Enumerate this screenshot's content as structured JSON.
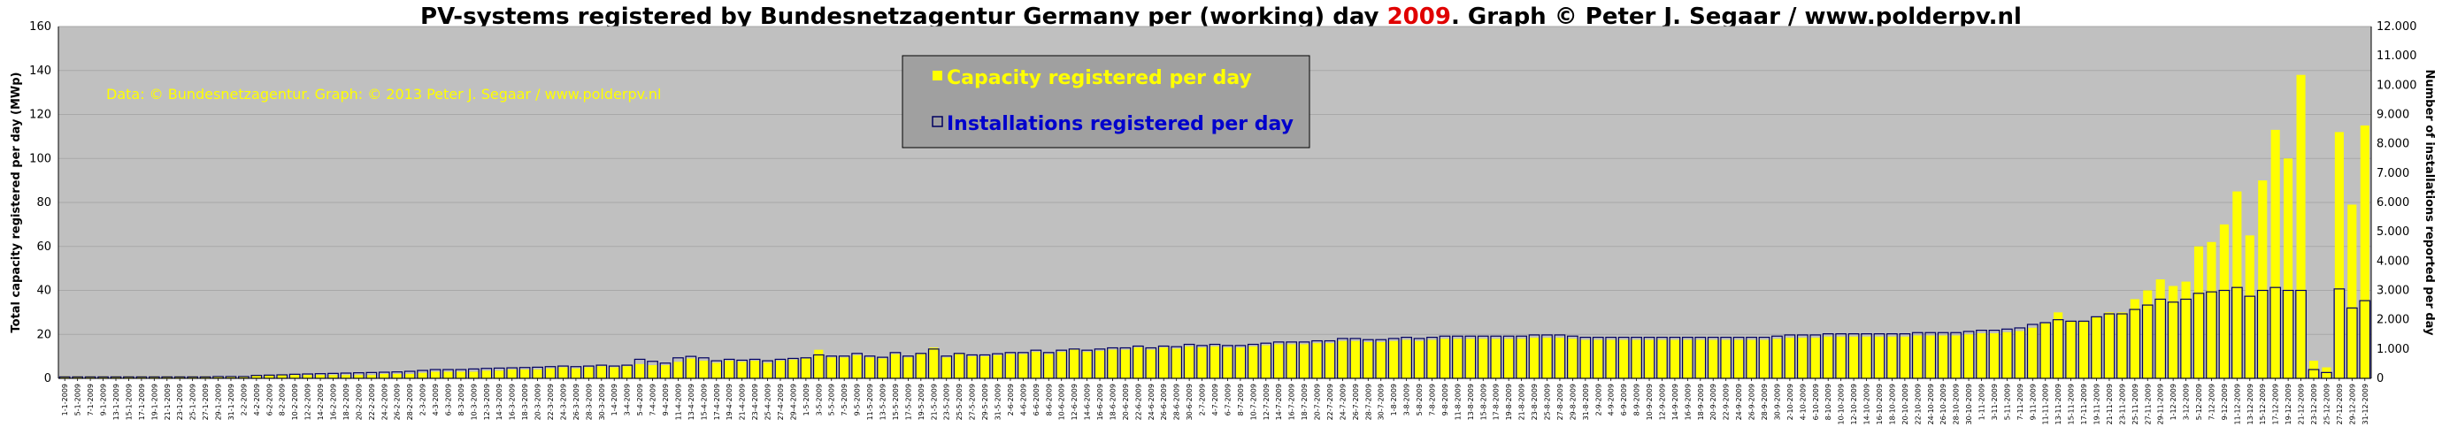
{
  "header": {
    "title_prefix": "PV-systems registered by Bundesnetzagentur Germany per (working) day ",
    "title_year": "2009",
    "title_suffix": ". Graph © Peter J. Segaar / www.polderpv.nl"
  },
  "credit": "Data: © Bundesnetzagentur. Graph: © 2013 Peter J. Segaar / www.polderpv.nl",
  "colors": {
    "plot_bg": "#c0c0c0",
    "capacity": "#ffff00",
    "installations_stroke": "#000060",
    "legend_bg": "#a0a0a0"
  },
  "chart_data": {
    "type": "bar",
    "ylabel": "Total capacity registered per day (MWp)",
    "y2label": "Number of installations reported per day",
    "ylim": [
      0,
      160
    ],
    "y2lim": [
      0,
      12000
    ],
    "yticks": [
      0,
      20,
      40,
      60,
      80,
      100,
      120,
      140,
      160
    ],
    "y2ticks": [
      "0",
      "1.000",
      "2.000",
      "3.000",
      "4.000",
      "5.000",
      "6.000",
      "7.000",
      "8.000",
      "9.000",
      "10.000",
      "11.000",
      "12.000"
    ],
    "legend": {
      "placement": "top-center",
      "entries": [
        "Capacity registered per day",
        "Installations registered per day"
      ]
    },
    "grid": true,
    "categories": [
      "1-1-2009",
      "5-1-2009",
      "7-1-2009",
      "9-1-2009",
      "13-1-2009",
      "15-1-2009",
      "17-1-2009",
      "19-1-2009",
      "21-1-2009",
      "23-1-2009",
      "25-1-2009",
      "27-1-2009",
      "29-1-2009",
      "31-1-2009",
      "2-2-2009",
      "4-2-2009",
      "6-2-2009",
      "8-2-2009",
      "10-2-2009",
      "12-2-2009",
      "14-2-2009",
      "16-2-2009",
      "18-2-2009",
      "20-2-2009",
      "22-2-2009",
      "24-2-2009",
      "26-2-2009",
      "28-2-2009",
      "2-3-2009",
      "4-3-2009",
      "6-3-2009",
      "8-3-2009",
      "10-3-2009",
      "12-3-2009",
      "14-3-2009",
      "16-3-2009",
      "18-3-2009",
      "20-3-2009",
      "22-3-2009",
      "24-3-2009",
      "26-3-2009",
      "28-3-2009",
      "30-3-2009",
      "1-4-2009",
      "3-4-2009",
      "5-4-2009",
      "7-4-2009",
      "9-4-2009",
      "11-4-2009",
      "13-4-2009",
      "15-4-2009",
      "17-4-2009",
      "19-4-2009",
      "21-4-2009",
      "23-4-2009",
      "25-4-2009",
      "27-4-2009",
      "29-4-2009",
      "1-5-2009",
      "3-5-2009",
      "5-5-2009",
      "7-5-2009",
      "9-5-2009",
      "11-5-2009",
      "13-5-2009",
      "15-5-2009",
      "17-5-2009",
      "19-5-2009",
      "21-5-2009",
      "23-5-2009",
      "25-5-2009",
      "27-5-2009",
      "29-5-2009",
      "31-5-2009",
      "2-6-2009",
      "4-6-2009",
      "6-6-2009",
      "8-6-2009",
      "10-6-2009",
      "12-6-2009",
      "14-6-2009",
      "16-6-2009",
      "18-6-2009",
      "20-6-2009",
      "22-6-2009",
      "24-6-2009",
      "26-6-2009",
      "28-6-2009",
      "30-6-2009",
      "2-7-2009",
      "4-7-2009",
      "6-7-2009",
      "8-7-2009",
      "10-7-2009",
      "12-7-2009",
      "14-7-2009",
      "16-7-2009",
      "18-7-2009",
      "20-7-2009",
      "22-7-2009",
      "24-7-2009",
      "26-7-2009",
      "28-7-2009",
      "30-7-2009",
      "1-8-2009",
      "3-8-2009",
      "5-8-2009",
      "7-8-2009",
      "9-8-2009",
      "11-8-2009",
      "13-8-2009",
      "15-8-2009",
      "17-8-2009",
      "19-8-2009",
      "21-8-2009",
      "23-8-2009",
      "25-8-2009",
      "27-8-2009",
      "29-8-2009",
      "31-8-2009",
      "2-9-2009",
      "4-9-2009",
      "6-9-2009",
      "8-9-2009",
      "10-9-2009",
      "12-9-2009",
      "14-9-2009",
      "16-9-2009",
      "18-9-2009",
      "20-9-2009",
      "22-9-2009",
      "24-9-2009",
      "26-9-2009",
      "28-9-2009",
      "30-9-2009",
      "2-10-2009",
      "4-10-2009",
      "6-10-2009",
      "8-10-2009",
      "10-10-2009",
      "12-10-2009",
      "14-10-2009",
      "16-10-2009",
      "18-10-2009",
      "20-10-2009",
      "22-10-2009",
      "24-10-2009",
      "26-10-2009",
      "28-10-2009",
      "30-10-2009",
      "1-11-2009",
      "3-11-2009",
      "5-11-2009",
      "7-11-2009",
      "9-11-2009",
      "11-11-2009",
      "13-11-2009",
      "15-11-2009",
      "17-11-2009",
      "19-11-2009",
      "21-11-2009",
      "23-11-2009",
      "25-11-2009",
      "27-11-2009",
      "29-11-2009",
      "1-12-2009",
      "3-12-2009",
      "5-12-2009",
      "7-12-2009",
      "9-12-2009",
      "11-12-2009",
      "13-12-2009",
      "15-12-2009",
      "17-12-2009",
      "19-12-2009",
      "21-12-2009",
      "23-12-2009",
      "25-12-2009",
      "27-12-2009",
      "29-12-2009",
      "31-12-2009"
    ],
    "series": [
      {
        "name": "Capacity registered per day",
        "axis": "left",
        "values": [
          1,
          1,
          1,
          1,
          1,
          1,
          1,
          1,
          1,
          1,
          1,
          1,
          1,
          1,
          1,
          1.5,
          1.5,
          1.5,
          1.5,
          1.5,
          1.5,
          1.5,
          1.5,
          1.5,
          1.5,
          2,
          2,
          2,
          2.5,
          3,
          3,
          3,
          3,
          3.5,
          3.5,
          4,
          4,
          4,
          4.5,
          5,
          4.5,
          5,
          5.5,
          5,
          5.5,
          6.5,
          6,
          6,
          7.5,
          9,
          8,
          7,
          8,
          7.5,
          8,
          7,
          8,
          8.5,
          9,
          13,
          9.5,
          9.5,
          10.5,
          9.5,
          9,
          11,
          9.5,
          11,
          14,
          9.5,
          11,
          10,
          10,
          10.5,
          11,
          11,
          12,
          11,
          12,
          13,
          12,
          12.5,
          13,
          13,
          14,
          13,
          14,
          13.5,
          14.5,
          14,
          14.5,
          14,
          14,
          14.5,
          15,
          15.5,
          15.5,
          15.5,
          16,
          16,
          17,
          17,
          16.5,
          16.5,
          17,
          17.5,
          17,
          17.5,
          18,
          18,
          18,
          18,
          18,
          18,
          18,
          18.5,
          18.5,
          18.5,
          18,
          17.5,
          17.5,
          17.5,
          17.5,
          17.5,
          17.5,
          17.5,
          17.5,
          17.5,
          17.5,
          17.5,
          17.5,
          17.5,
          17.5,
          17.5,
          18,
          18.5,
          18.5,
          18.5,
          19,
          19,
          19,
          19,
          19,
          19,
          19,
          19.5,
          19.5,
          19.5,
          19.5,
          20,
          20.5,
          20.5,
          21,
          21.5,
          23,
          25,
          30,
          26,
          26,
          28,
          30,
          30,
          36,
          40,
          45,
          42,
          44,
          60,
          62,
          70,
          85,
          65,
          90,
          113,
          100,
          138,
          8,
          5,
          112,
          79,
          115
        ]
      },
      {
        "name": "Installations registered per day",
        "axis": "right",
        "values": [
          50,
          50,
          50,
          50,
          50,
          50,
          50,
          50,
          50,
          50,
          50,
          50,
          60,
          60,
          60,
          100,
          110,
          120,
          140,
          150,
          160,
          170,
          180,
          190,
          200,
          210,
          220,
          240,
          270,
          300,
          300,
          300,
          320,
          340,
          350,
          360,
          370,
          380,
          400,
          420,
          400,
          420,
          450,
          420,
          450,
          650,
          580,
          520,
          700,
          750,
          700,
          600,
          650,
          620,
          650,
          600,
          650,
          680,
          700,
          800,
          760,
          760,
          850,
          760,
          720,
          880,
          760,
          850,
          1000,
          760,
          850,
          800,
          800,
          840,
          880,
          880,
          960,
          880,
          960,
          1000,
          960,
          1000,
          1040,
          1040,
          1100,
          1040,
          1100,
          1080,
          1160,
          1120,
          1160,
          1120,
          1120,
          1160,
          1200,
          1240,
          1240,
          1240,
          1280,
          1280,
          1360,
          1360,
          1320,
          1320,
          1360,
          1400,
          1360,
          1400,
          1440,
          1440,
          1440,
          1440,
          1440,
          1440,
          1440,
          1480,
          1480,
          1480,
          1440,
          1400,
          1400,
          1400,
          1400,
          1400,
          1400,
          1400,
          1400,
          1400,
          1400,
          1400,
          1400,
          1400,
          1400,
          1400,
          1440,
          1480,
          1480,
          1480,
          1520,
          1520,
          1520,
          1520,
          1520,
          1520,
          1520,
          1560,
          1560,
          1560,
          1560,
          1600,
          1640,
          1640,
          1680,
          1720,
          1840,
          1900,
          2000,
          1950,
          1950,
          2100,
          2200,
          2200,
          2350,
          2500,
          2700,
          2600,
          2700,
          2900,
          2950,
          3000,
          3100,
          2800,
          3000,
          3100,
          3000,
          3000,
          300,
          200,
          3050,
          2400,
          2650
        ]
      }
    ]
  }
}
